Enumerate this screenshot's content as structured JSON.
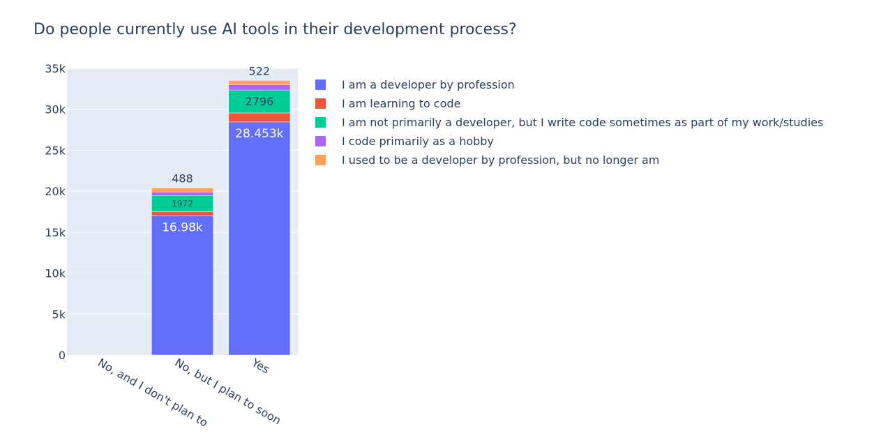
{
  "chart_data": {
    "type": "bar",
    "stacked": true,
    "title": "Do people currently use AI tools in their development process?",
    "xlabel": "",
    "ylabel": "",
    "categories": [
      "No, and I don't plan to",
      "No, but I plan to soon",
      "Yes"
    ],
    "ylim": [
      0,
      35000
    ],
    "y_ticks": [
      0,
      5000,
      10000,
      15000,
      20000,
      25000,
      30000,
      35000
    ],
    "y_tick_labels": [
      "0",
      "5k",
      "10k",
      "15k",
      "20k",
      "25k",
      "30k",
      "35k"
    ],
    "grid": true,
    "legend_position": "right",
    "series": [
      {
        "name": "I am a developer by profession",
        "color": "#636efa",
        "values": [
          0,
          16980,
          28453
        ],
        "labels": [
          "",
          "16.98k",
          "28.453k"
        ]
      },
      {
        "name": "I am learning to code",
        "color": "#ef553b",
        "values": [
          0,
          530,
          1100
        ],
        "labels": [
          "",
          "",
          ""
        ]
      },
      {
        "name": "I am not primarily a developer, but I write code sometimes as part of my work/studies",
        "color": "#00cc96",
        "values": [
          0,
          1972,
          2796
        ],
        "labels": [
          "",
          "1972",
          "2796"
        ]
      },
      {
        "name": "I code primarily as a hobby",
        "color": "#ab63fa",
        "values": [
          0,
          420,
          653
        ],
        "labels": [
          "",
          "",
          ""
        ]
      },
      {
        "name": "I used to be a developer by profession, but no longer am",
        "color": "#ffa15a",
        "values": [
          0,
          488,
          522
        ],
        "labels": [
          "",
          "488",
          "522"
        ]
      }
    ]
  }
}
